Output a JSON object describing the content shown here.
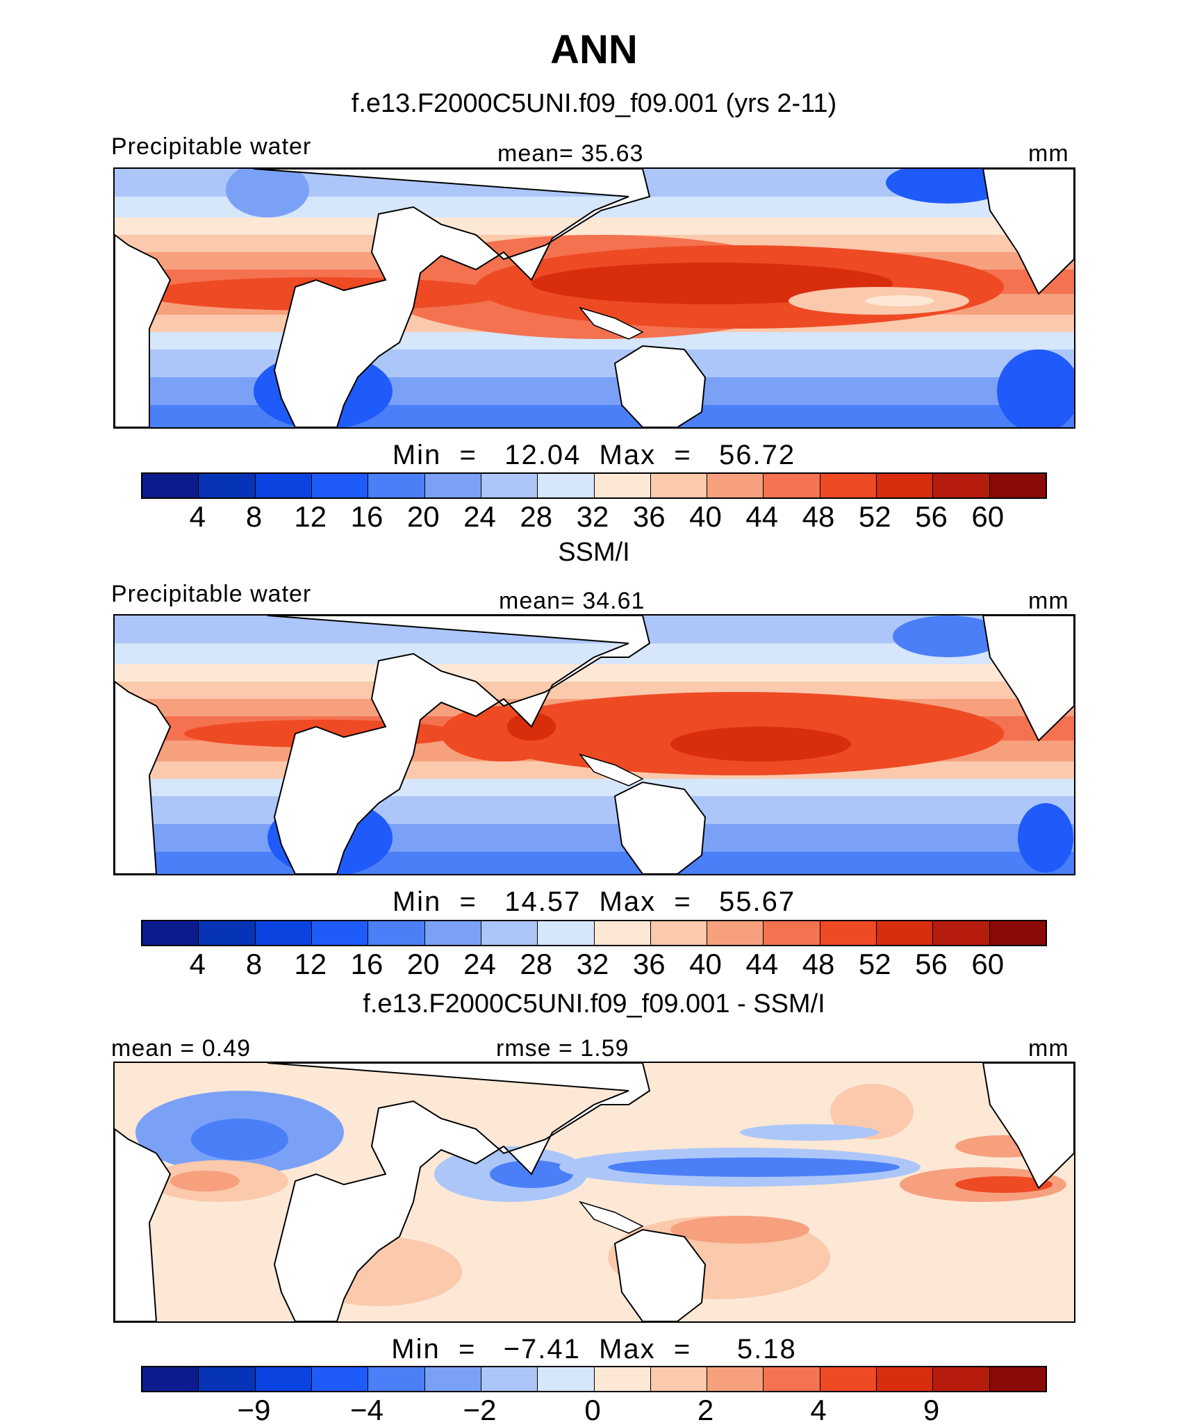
{
  "title": "ANN",
  "palette": [
    "#0a1c8e",
    "#0733b6",
    "#0a43df",
    "#1f5bfa",
    "#4a7ff7",
    "#7ba1f7",
    "#acc6f9",
    "#d6e6fb",
    "#fde8d6",
    "#fbc9ac",
    "#f7a07e",
    "#f47250",
    "#ee4a24",
    "#d82e0e",
    "#b61c0e",
    "#8a0b07"
  ],
  "panels": [
    {
      "title": "f.e13.F2000C5UNI.f09_f09.001 (yrs 2-11)",
      "header_left": "Precipitable water",
      "header_center": "mean=   35.63",
      "header_right": "mm",
      "minmax": "Min  =   12.04  Max  =   56.72",
      "colorbar_ticks": [
        "4",
        "8",
        "12",
        "16",
        "20",
        "24",
        "28",
        "32",
        "36",
        "40",
        "44",
        "48",
        "52",
        "56",
        "60"
      ]
    },
    {
      "title": "SSM/I",
      "header_left": "Precipitable water",
      "header_center": "mean=   34.61",
      "header_right": "mm",
      "minmax": "Min  =   14.57  Max  =   55.67",
      "colorbar_ticks": [
        "4",
        "8",
        "12",
        "16",
        "20",
        "24",
        "28",
        "32",
        "36",
        "40",
        "44",
        "48",
        "52",
        "56",
        "60"
      ]
    },
    {
      "title": "f.e13.F2000C5UNI.f09_f09.001 - SSM/I",
      "header_left": "mean =    0.49",
      "header_center": "rmse =    1.59",
      "header_right": "mm",
      "minmax": "Min  =   −7.41  Max  =     5.18",
      "colorbar_ticks": [
        "−9",
        "−4",
        "−2",
        "0",
        "2",
        "4",
        "9"
      ]
    }
  ]
}
